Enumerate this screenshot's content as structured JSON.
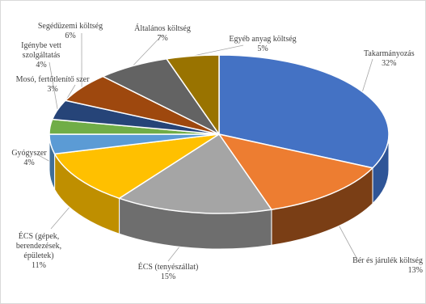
{
  "chart_data": {
    "type": "pie",
    "title": "",
    "slices": [
      {
        "label": "Takarmányozás",
        "value": 32,
        "pct_label": "32%",
        "color": "#4472C4",
        "side": "#2F5597"
      },
      {
        "label": "Bér és járulék költség",
        "value": 13,
        "pct_label": "13%",
        "color": "#ED7D31",
        "side": "#7A3E15"
      },
      {
        "label": "ÉCS (tenyészállat)",
        "value": 15,
        "pct_label": "15%",
        "color": "#A5A5A5",
        "side": "#6E6E6E"
      },
      {
        "label": "ÉCS (gépek, berendezések, épületek)",
        "value": 11,
        "pct_label": "11%",
        "color": "#FFC000",
        "side": "#BF8F00"
      },
      {
        "label": "Gyógyszer",
        "value": 4,
        "pct_label": "4%",
        "color": "#5B9BD5",
        "side": "#3F6E98"
      },
      {
        "label": "Mosó, fertőtlenítő szer",
        "value": 3,
        "pct_label": "3%",
        "color": "#70AD47",
        "side": "#4E7A31"
      },
      {
        "label": "Igénybe vett szolgáltatás",
        "value": 4,
        "pct_label": "4%",
        "color": "#264478",
        "side": "#17294A"
      },
      {
        "label": "Segédüzemi költség",
        "value": 6,
        "pct_label": "6%",
        "color": "#9E480E",
        "side": "#5F2B08"
      },
      {
        "label": "Általános költség",
        "value": 7,
        "pct_label": "7%",
        "color": "#636363",
        "side": "#3C3C3C"
      },
      {
        "label": "Egyéb anyag költség",
        "value": 5,
        "pct_label": "5%",
        "color": "#997300",
        "side": "#5C4500"
      }
    ]
  },
  "labels": {
    "takarmany": {
      "line1": "Takarmányozás",
      "pct": "32%"
    },
    "ber": {
      "line1": "Bér és járulék költség",
      "pct": "13%"
    },
    "ecs_teny": {
      "line1": "ÉCS (tenyészállat)",
      "pct": "15%"
    },
    "ecs_gep": {
      "line1": "ÉCS (gépek,",
      "line2": "berendezések,",
      "line3": "épületek)",
      "pct": "11%"
    },
    "gyogy": {
      "line1": "Gyógyszer",
      "pct": "4%"
    },
    "moso": {
      "line1": "Mosó, fertőtlenítő szer",
      "pct": "3%"
    },
    "igeny": {
      "line1": "Igénybe vett",
      "line2": "szolgáltatás",
      "pct": "4%"
    },
    "seged": {
      "line1": "Segédüzemi  költség",
      "pct": "6%"
    },
    "altal": {
      "line1": "Általános költség",
      "pct": "7%"
    },
    "egyeb": {
      "line1": "Egyéb anyag költség",
      "pct": "5%"
    }
  }
}
